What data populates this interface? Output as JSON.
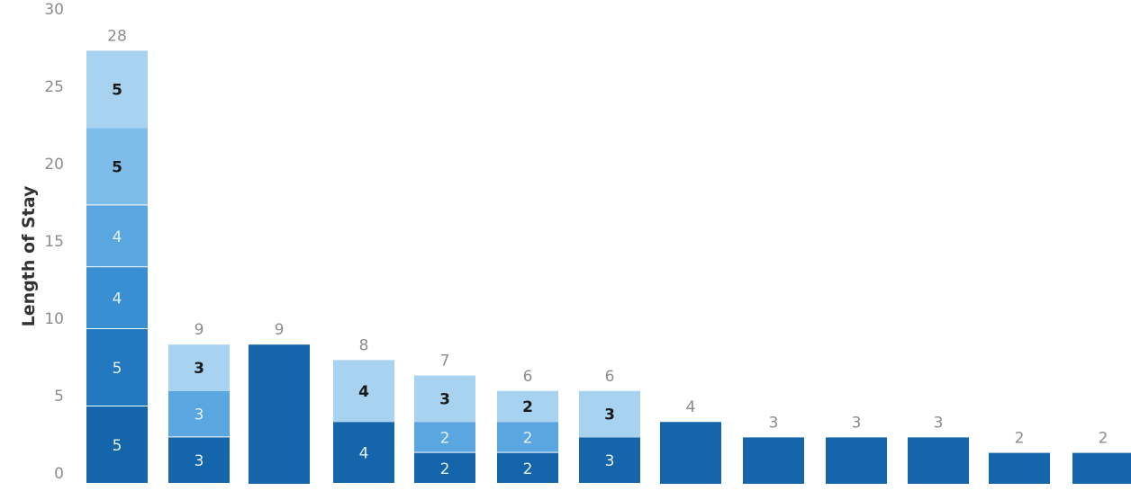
{
  "chart_data": {
    "type": "bar",
    "stacked": true,
    "title": "",
    "xlabel": "",
    "ylabel": "Length of Stay",
    "ylim": [
      0,
      30
    ],
    "yticks": [
      0,
      5,
      10,
      15,
      20,
      25,
      30
    ],
    "grid": false,
    "legend": "none",
    "totals": [
      28,
      9,
      9,
      8,
      7,
      6,
      6,
      4,
      3,
      3,
      3,
      2,
      2
    ],
    "bars": [
      {
        "segments": [
          5,
          5,
          4,
          4,
          5,
          5
        ]
      },
      {
        "segments": [
          3,
          3,
          3
        ]
      },
      {
        "segments": [
          9
        ]
      },
      {
        "segments": [
          4,
          4
        ]
      },
      {
        "segments": [
          2,
          2,
          3
        ]
      },
      {
        "segments": [
          2,
          2,
          2
        ]
      },
      {
        "segments": [
          3,
          3
        ]
      },
      {
        "segments": [
          4
        ]
      },
      {
        "segments": [
          3
        ]
      },
      {
        "segments": [
          3
        ]
      },
      {
        "segments": [
          3
        ]
      },
      {
        "segments": [
          2
        ]
      },
      {
        "segments": [
          2
        ]
      }
    ],
    "colors": [
      "#1565ab",
      "#2378bf",
      "#3a8fd2",
      "#5aa6e0",
      "#7ebde9",
      "#a7d3f1"
    ]
  }
}
